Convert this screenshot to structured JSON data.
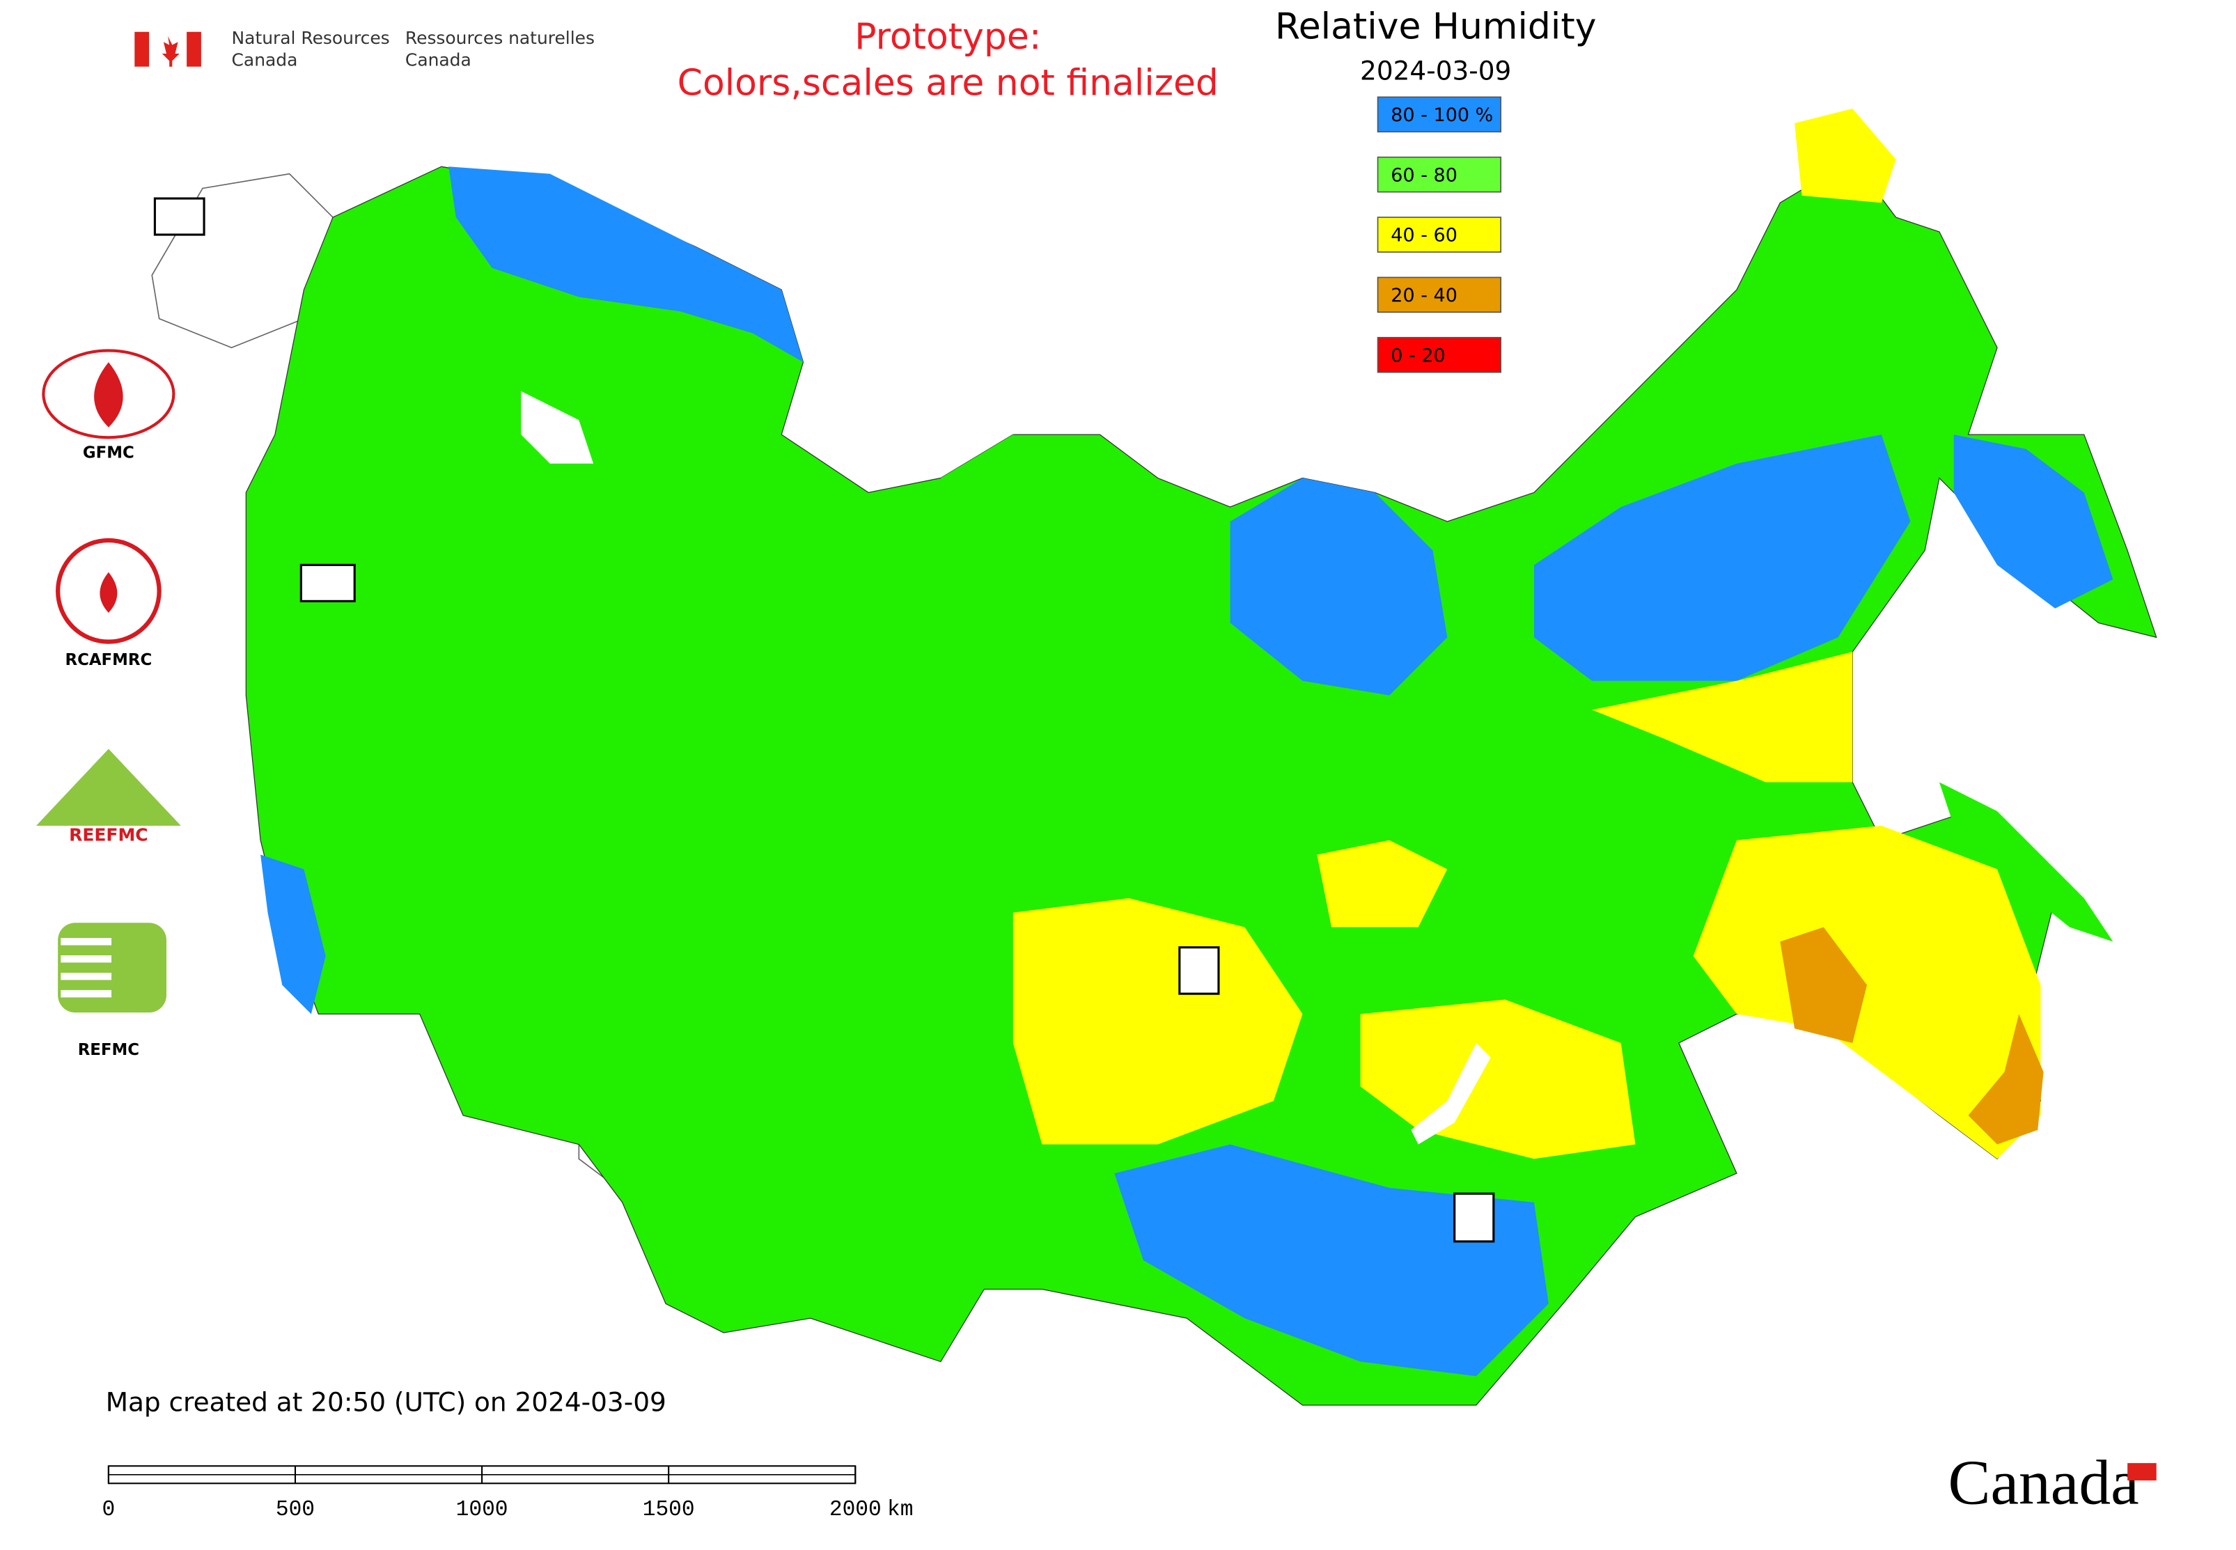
{
  "header": {
    "agency_en_line1": "Natural Resources",
    "agency_en_line2": "Canada",
    "agency_fr_line1": "Ressources naturelles",
    "agency_fr_line2": "Canada"
  },
  "notice": {
    "line1": "Prototype:",
    "line2": "Colors,scales are not finalized"
  },
  "legend": {
    "title": "Relative Humidity",
    "date": "2024-03-09",
    "items": [
      {
        "label": "80 - 100 %",
        "color": "#1e8fff"
      },
      {
        "label": "60 - 80",
        "color": "#66ff33"
      },
      {
        "label": "40 - 60",
        "color": "#ffff00"
      },
      {
        "label": "20 - 40",
        "color": "#e69a00"
      },
      {
        "label": "0 - 20",
        "color": "#ff0000"
      }
    ]
  },
  "logos": {
    "gfmc": "GFMC",
    "rcafmrc": "RCAFMRC",
    "reefmc": "REEFMC",
    "refmc": "REFMC"
  },
  "footer": {
    "created": "Map created at 20:50 (UTC) on 2024-03-09",
    "wordmark": "Canada"
  },
  "scale_bar": {
    "ticks": [
      0,
      500,
      1000,
      1500,
      2000
    ],
    "unit": "km"
  }
}
